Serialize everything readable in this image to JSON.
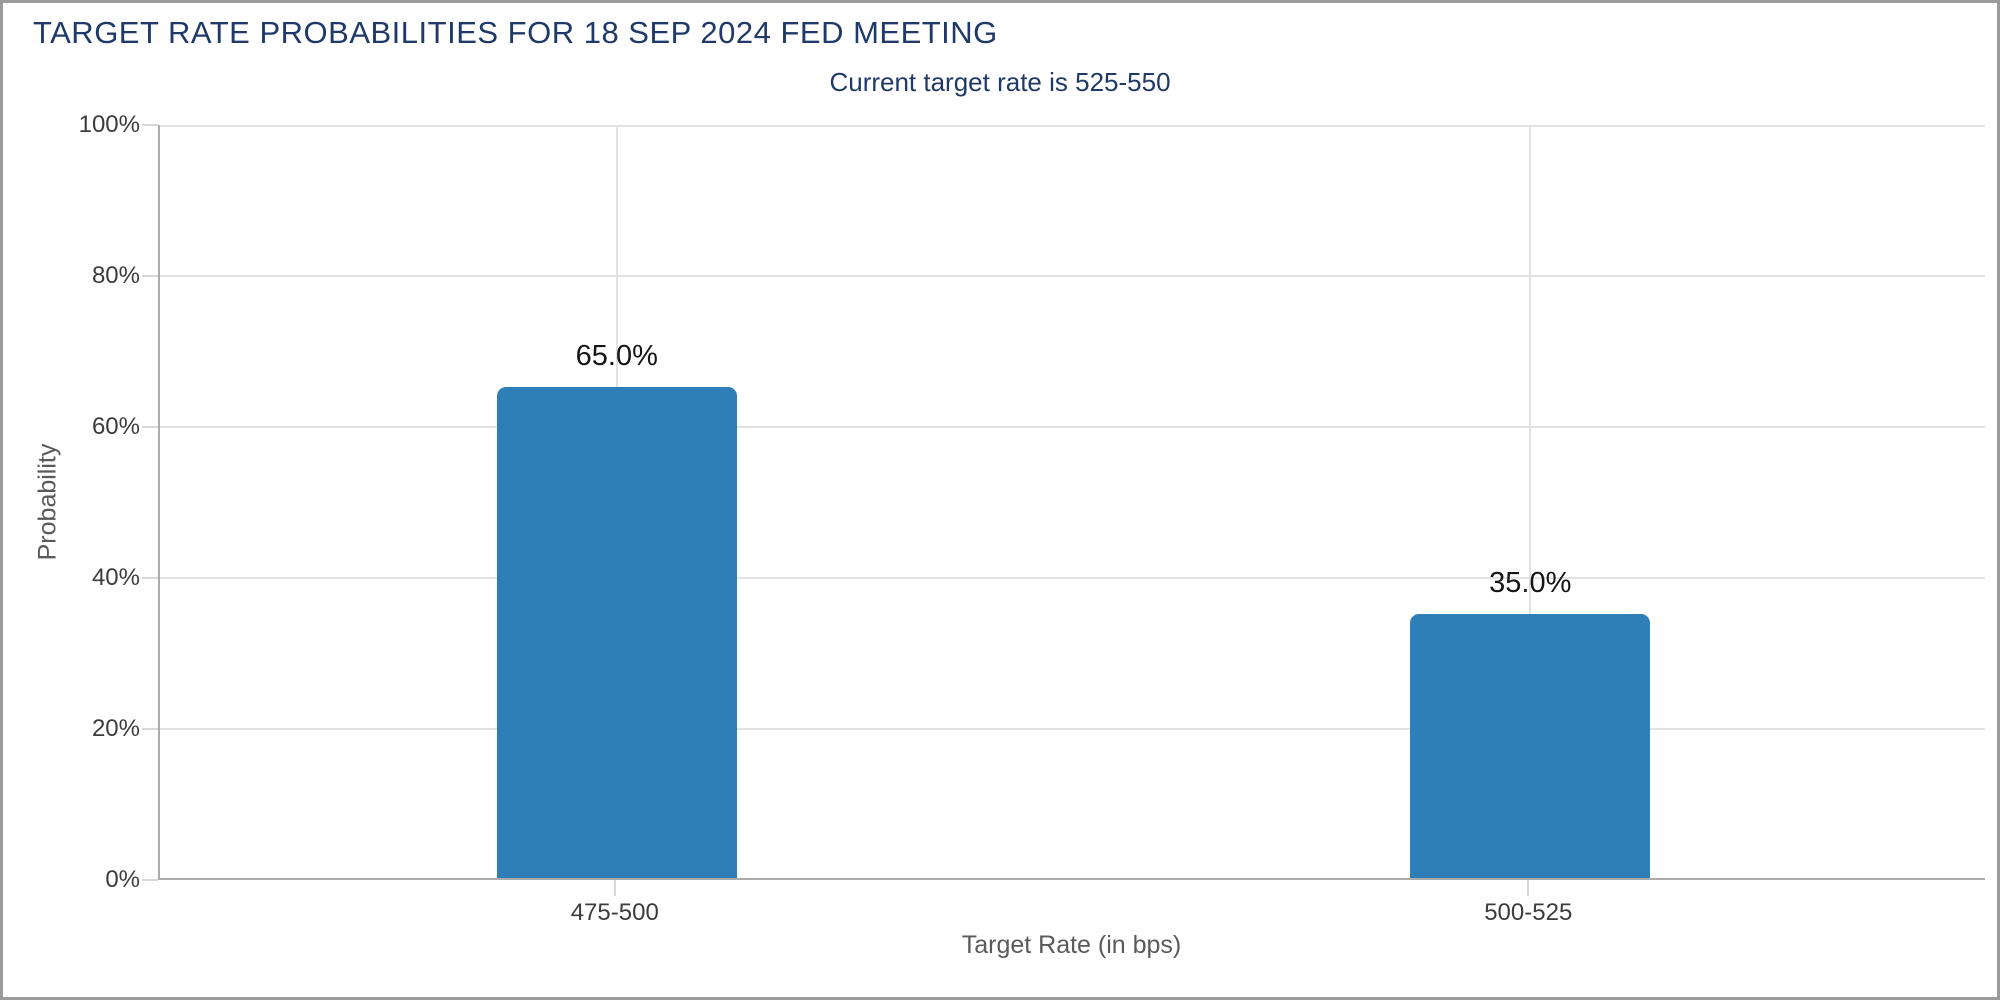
{
  "window": {
    "kind": "chart-panel"
  },
  "colors": {
    "accent_navy": "#1f3a68",
    "bar_blue": "#2e7eb8",
    "gridline": "#e2e2e2",
    "axis_spine": "#ababab",
    "tick_dash": "#d8d8d8",
    "tick_text": "#3c3c3c",
    "axis_title_text": "#5a5a5a",
    "value_text": "#161616",
    "window_border": "#9a9a9a",
    "background": "#ffffff"
  },
  "chart_data": {
    "type": "bar",
    "title": "TARGET RATE PROBABILITIES FOR 18 SEP 2024 FED MEETING",
    "subtitle": "Current target rate is 525-550",
    "xlabel": "Target Rate (in bps)",
    "ylabel": "Probability",
    "categories": [
      "475-500",
      "500-525"
    ],
    "values": [
      65.0,
      35.0
    ],
    "value_labels": [
      "65.0%",
      "35.0%"
    ],
    "ylim": [
      0,
      100
    ],
    "yticks": [
      0,
      20,
      40,
      60,
      80,
      100
    ],
    "ytick_labels": [
      "0%",
      "20%",
      "40%",
      "60%",
      "80%",
      "100%"
    ],
    "grid": true,
    "legend": false,
    "bar_color": "#2e7eb8"
  }
}
